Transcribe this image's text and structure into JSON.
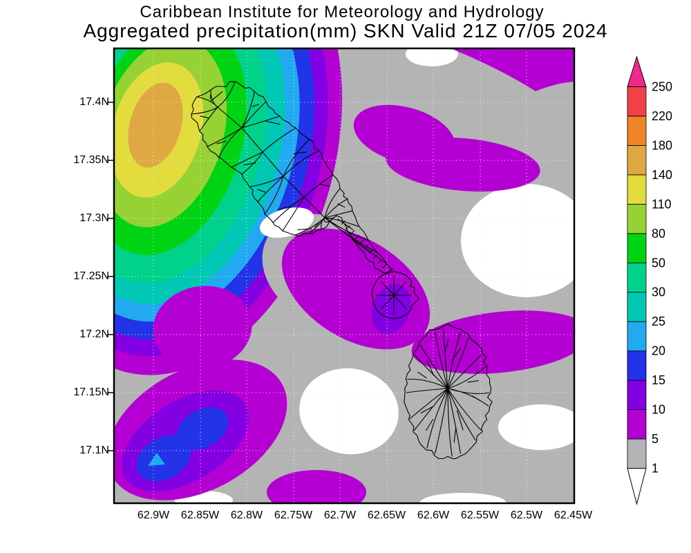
{
  "title": {
    "line1": "Caribbean Institute for Meteorology and Hydrology",
    "line2": "Aggregated precipitation(mm) SKN Valid 21Z 07/05 2024"
  },
  "axes": {
    "lon_ticks": [
      "62.9W",
      "62.85W",
      "62.8W",
      "62.75W",
      "62.7W",
      "62.65W",
      "62.6W",
      "62.55W",
      "62.5W",
      "62.45W"
    ],
    "lat_ticks": [
      "17.4N",
      "17.35N",
      "17.3N",
      "17.25N",
      "17.2N",
      "17.15N",
      "17.1N"
    ]
  },
  "map": {
    "background": "#b4b4b4",
    "grid_color": "#f0f0f0",
    "coastline_color": "#000000",
    "border_color": "#000000"
  },
  "colorbar": {
    "levels": [
      "1",
      "5",
      "10",
      "15",
      "20",
      "25",
      "30",
      "50",
      "80",
      "110",
      "140",
      "180",
      "220",
      "250"
    ],
    "colors": {
      "below_1": "#ffffff",
      "segments": [
        "#b4b4b4",
        "#b400d2",
        "#8200e1",
        "#2333e8",
        "#22aaf0",
        "#00c8b4",
        "#00d28c",
        "#00d214",
        "#96d233",
        "#e3dc3e",
        "#e0a843",
        "#f08228",
        "#f04146"
      ],
      "above_250": "#f0288c"
    }
  },
  "chart_data": {
    "type": "filled_contour_map",
    "title": "Aggregated precipitation(mm) SKN Valid 21Z 07/05 2024",
    "institution": "Caribbean Institute for Meteorology and Hydrology",
    "variable": "aggregated precipitation",
    "units": "mm",
    "valid_time": "21Z 07/05 2024",
    "region": "St. Kitts and Nevis (SKN)",
    "x_ticks": [
      "62.9W",
      "62.85W",
      "62.8W",
      "62.75W",
      "62.7W",
      "62.65W",
      "62.6W",
      "62.55W",
      "62.5W",
      "62.45W"
    ],
    "y_ticks": [
      "17.4N",
      "17.35N",
      "17.3N",
      "17.25N",
      "17.2N",
      "17.15N",
      "17.1N"
    ],
    "contour_levels_mm": [
      1,
      5,
      10,
      15,
      20,
      25,
      30,
      50,
      80,
      110,
      140,
      180,
      220,
      250
    ],
    "colorbar_colors_low_to_high": [
      "#ffffff",
      "#b4b4b4",
      "#b400d2",
      "#8200e1",
      "#2333e8",
      "#22aaf0",
      "#00c8b4",
      "#00d28c",
      "#00d214",
      "#96d233",
      "#e3dc3e",
      "#e0a843",
      "#f08228",
      "#f04146",
      "#f0288c"
    ],
    "grid": true,
    "legend_position": "right vertical colorbar with end arrows",
    "features": [
      {
        "name": "primary-precip-max",
        "approx_location": "62.88W 17.37N, northwest of St. Kitts",
        "peak_band_mm": "140-180"
      },
      {
        "name": "secondary-max-southwest",
        "approx_location": "62.90W 17.09N",
        "peak_band_mm": "20-25"
      },
      {
        "name": "local-max-narrows",
        "approx_location": "62.68W 17.22N",
        "peak_band_mm": "10-15"
      },
      {
        "name": "background-field",
        "band_mm": "1-5",
        "color": "gray"
      },
      {
        "name": "dry-pockets",
        "band_mm": "<1",
        "color": "white",
        "locations": "center-east, west of Nevis, east of Nevis, bottom edge, top edge"
      },
      {
        "name": "light-rain-bands",
        "band_mm": "5-10",
        "locations": "top-right corner, north-center S-shaped band, east of Nevis, west-center blob, bottom-center"
      }
    ],
    "overlays": [
      "St. Kitts coastline with drainage network",
      "Nevis coastline with drainage network"
    ]
  }
}
